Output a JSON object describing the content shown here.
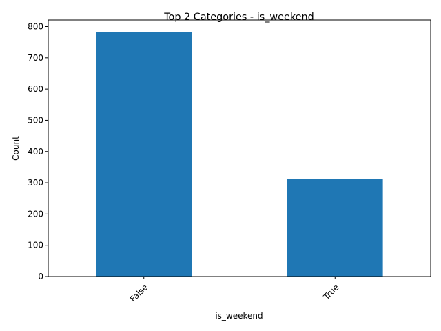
{
  "chart_data": {
    "type": "bar",
    "title": "Top 2 Categories - is_weekend",
    "xlabel": "is_weekend",
    "ylabel": "Count",
    "categories": [
      "False",
      "True"
    ],
    "values": [
      782,
      312
    ],
    "ylim": [
      0,
      821
    ],
    "yticks": [
      0,
      100,
      200,
      300,
      400,
      500,
      600,
      700,
      800
    ],
    "grid": false,
    "legend": "none",
    "bar_color": "#1f77b4"
  }
}
